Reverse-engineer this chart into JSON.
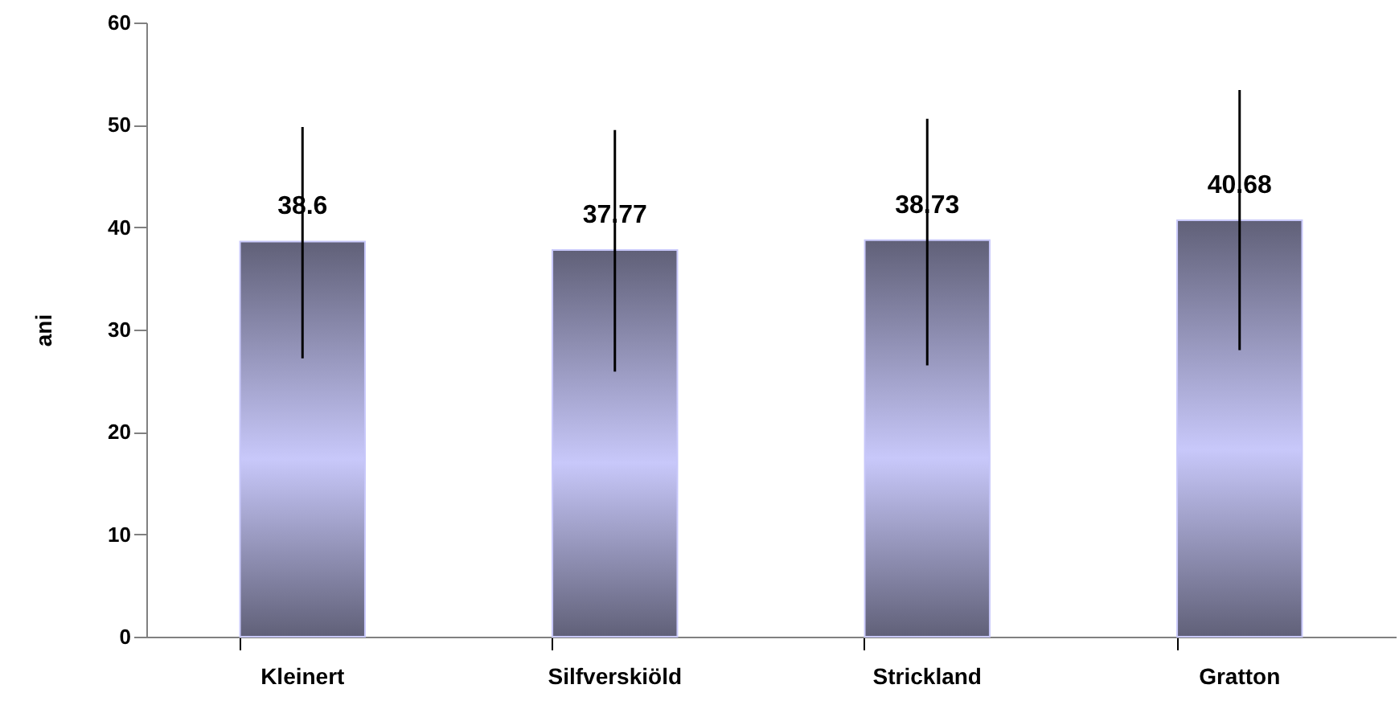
{
  "chart_data": {
    "type": "bar",
    "ylabel": "ani",
    "categories": [
      "Kleinert",
      "Silfverskiöld",
      "Strickland",
      "Gratton"
    ],
    "values": [
      38.6,
      37.77,
      38.73,
      40.68
    ],
    "errors": [
      [
        27.2,
        49.8
      ],
      [
        25.9,
        49.5
      ],
      [
        26.5,
        50.6
      ],
      [
        28.0,
        53.4
      ]
    ],
    "color": "#c8c8fa",
    "ylim": [
      0,
      60
    ],
    "yticks": [
      0,
      10,
      20,
      30,
      40,
      50,
      60
    ],
    "data_labels": true,
    "grid": false
  }
}
